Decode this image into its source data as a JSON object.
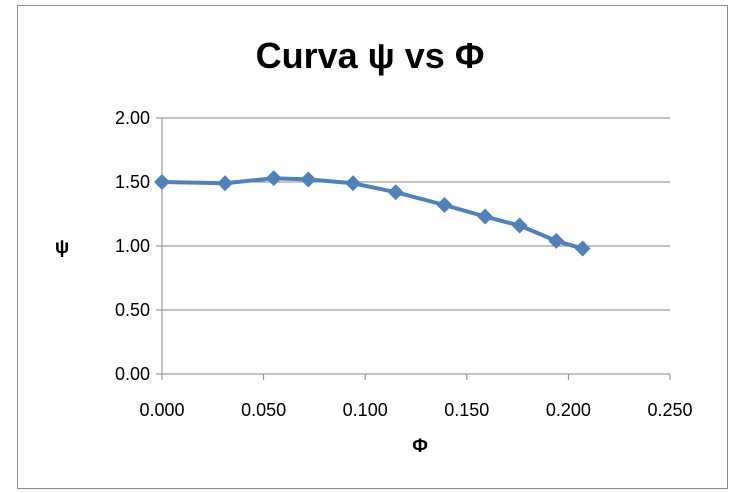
{
  "chart_data": {
    "type": "line",
    "title": "Curva ψ vs Φ",
    "xlabel": "Φ",
    "ylabel": "ψ",
    "xlim": [
      0,
      0.25
    ],
    "ylim": [
      0,
      2
    ],
    "x_ticks": [
      "0.000",
      "0.050",
      "0.100",
      "0.150",
      "0.200",
      "0.250"
    ],
    "y_ticks": [
      "0.00",
      "0.50",
      "1.00",
      "1.50",
      "2.00"
    ],
    "grid": "horizontal",
    "legend": "none",
    "marker": "diamond",
    "series": [
      {
        "color": "#4f81bd",
        "x": [
          0.0,
          0.031,
          0.055,
          0.072,
          0.094,
          0.115,
          0.139,
          0.159,
          0.176,
          0.194,
          0.207
        ],
        "y": [
          1.5,
          1.49,
          1.53,
          1.52,
          1.49,
          1.42,
          1.32,
          1.23,
          1.16,
          1.04,
          0.98
        ]
      }
    ]
  }
}
